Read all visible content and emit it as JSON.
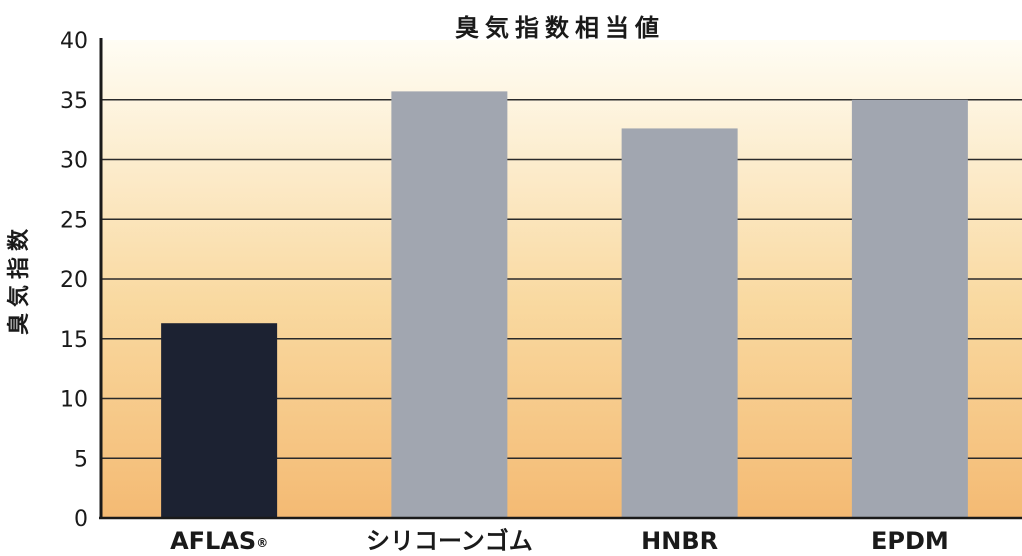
{
  "chart_data": {
    "type": "bar",
    "title": "臭気指数相当値",
    "ylabel": "臭気指数",
    "xlabel": "",
    "categories": [
      "AFLAS",
      "シリコーンゴム",
      "HNBR",
      "EPDM"
    ],
    "category_marks": [
      "®",
      "",
      "",
      ""
    ],
    "values": [
      16.3,
      35.7,
      32.6,
      35.0
    ],
    "bar_colors": [
      "#1c2232",
      "#a1a6b0",
      "#a1a6b0",
      "#a1a6b0"
    ],
    "ylim": [
      0,
      40
    ],
    "yticks": [
      "0",
      "5",
      "10",
      "15",
      "20",
      "25",
      "30",
      "35",
      "40"
    ],
    "grid": true,
    "background_gradient": [
      "#fffdf4",
      "#f9d9a0",
      "#f4ba73"
    ]
  }
}
